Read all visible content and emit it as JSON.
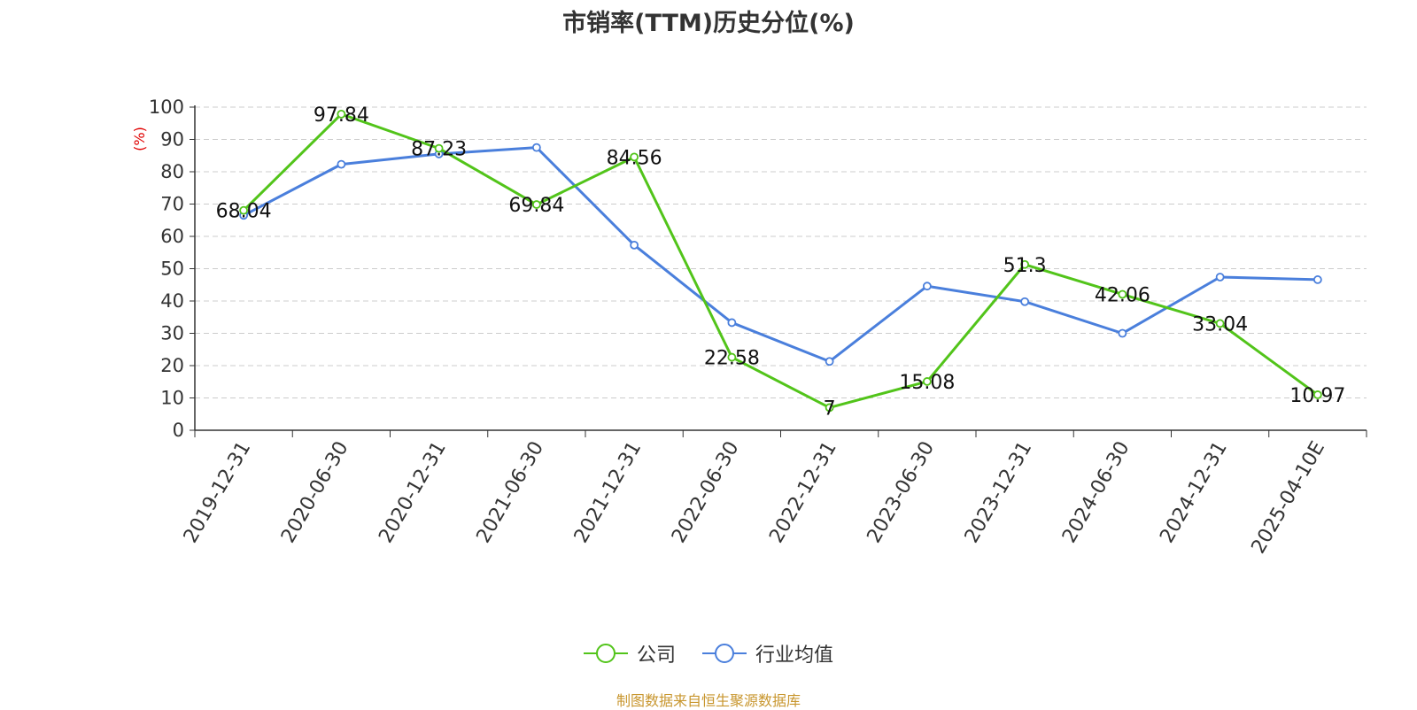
{
  "chart_data": {
    "type": "line",
    "title": "市销率(TTM)历史分位(%)",
    "ylabel": "(%)",
    "xlabel": "",
    "ylim": [
      0,
      100
    ],
    "yticks": [
      0,
      10,
      20,
      30,
      40,
      50,
      60,
      70,
      80,
      90,
      100
    ],
    "categories": [
      "2019-12-31",
      "2020-06-30",
      "2020-12-31",
      "2021-06-30",
      "2021-12-31",
      "2022-06-30",
      "2022-12-31",
      "2023-06-30",
      "2023-12-31",
      "2024-06-30",
      "2024-12-31",
      "2025-04-10E"
    ],
    "grid": true,
    "legend_position": "bottom",
    "series": [
      {
        "name": "公司",
        "color": "#52c41a",
        "values": [
          68.04,
          97.84,
          87.23,
          69.84,
          84.56,
          22.58,
          7,
          15.08,
          51.3,
          42.06,
          33.04,
          10.97
        ],
        "labels": [
          "68.04",
          "97.84",
          "87.23",
          "69.84",
          "84.56",
          "22.58",
          "7",
          "15.08",
          "51.3",
          "42.06",
          "33.04",
          "10.97"
        ]
      },
      {
        "name": "行业均值",
        "color": "#4a7fdc",
        "values": [
          66.5,
          82.3,
          85.5,
          87.5,
          57.3,
          33.3,
          21.3,
          44.6,
          39.8,
          30,
          47.4,
          46.6
        ]
      }
    ]
  },
  "source_text": "制图数据来自恒生聚源数据库"
}
